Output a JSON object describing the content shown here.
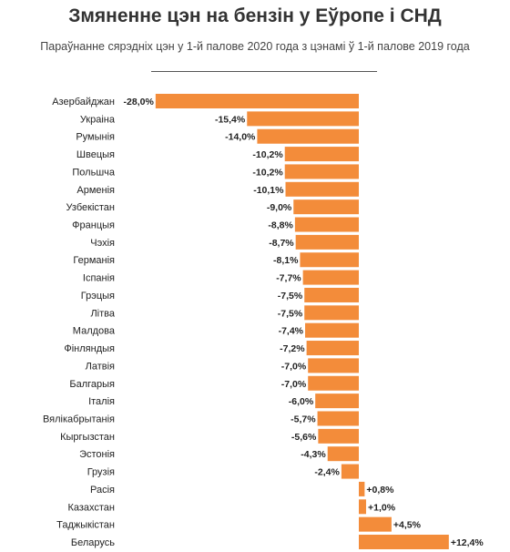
{
  "chart_data": {
    "type": "bar",
    "orientation": "horizontal",
    "title": "Змяненне цэн на бензін у Еўропе і СНД",
    "subtitle": "Параўнанне сярэдніх цэн у 1-й палове 2020 года з цэнамі ў 1-й палове 2019 года",
    "categories": [
      "Азербайджан",
      "Украіна",
      "Румынія",
      "Швецыя",
      "Польшча",
      "Арменія",
      "Узбекістан",
      "Францыя",
      "Чэхія",
      "Германія",
      "Іспанія",
      "Грэцыя",
      "Літва",
      "Малдова",
      "Фінляндыя",
      "Латвія",
      "Балгарыя",
      "Італія",
      "Вялікабрытанія",
      "Кыргызстан",
      "Эстонія",
      "Грузія",
      "Расія",
      "Казахстан",
      "Таджыкістан",
      "Беларусь"
    ],
    "values": [
      -28.0,
      -15.4,
      -14.0,
      -10.2,
      -10.2,
      -10.1,
      -9.0,
      -8.8,
      -8.7,
      -8.1,
      -7.7,
      -7.5,
      -7.5,
      -7.4,
      -7.2,
      -7.0,
      -7.0,
      -6.0,
      -5.7,
      -5.6,
      -4.3,
      -2.4,
      0.8,
      1.0,
      4.5,
      12.4
    ],
    "value_labels": [
      "-28,0%",
      "-15,4%",
      "-14,0%",
      "-10,2%",
      "-10,2%",
      "-10,1%",
      "-9,0%",
      "-8,8%",
      "-8,7%",
      "-8,1%",
      "-7,7%",
      "-7,5%",
      "-7,5%",
      "-7,4%",
      "-7,2%",
      "-7,0%",
      "-7,0%",
      "-6,0%",
      "-5,7%",
      "-5,6%",
      "-4,3%",
      "-2,4%",
      "+0,8%",
      "+1,0%",
      "+4,5%",
      "+12,4%"
    ],
    "xlim": [
      -28.0,
      12.4
    ],
    "grid": false,
    "legend": "none",
    "bar_color": "#f38c3a"
  }
}
